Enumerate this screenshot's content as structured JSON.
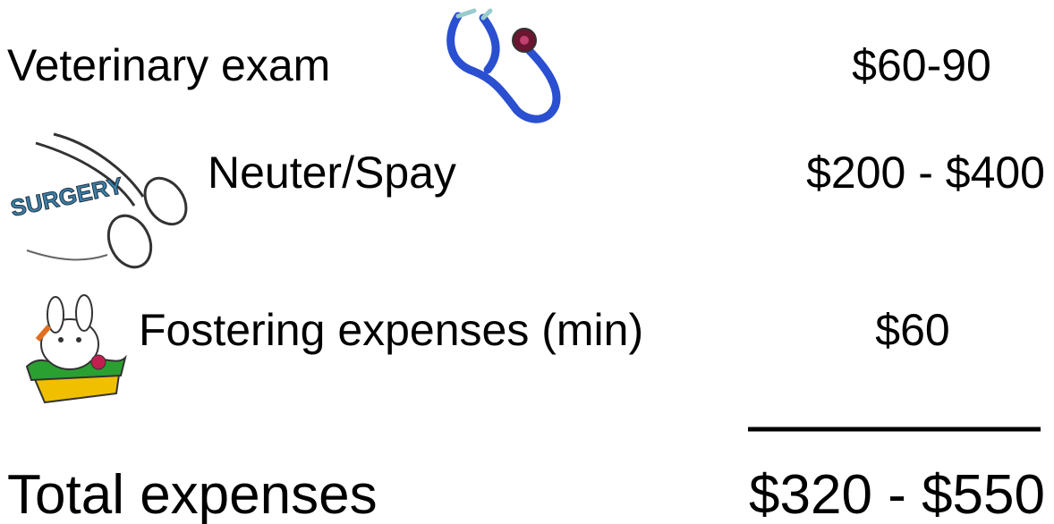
{
  "items": [
    {
      "label": "Veterinary exam",
      "amount": "$60-90"
    },
    {
      "label": "Neuter/Spay",
      "amount": "$200 - $400",
      "icon_text": "SURGERY"
    },
    {
      "label": "Fostering expenses (min)",
      "amount": "$60"
    }
  ],
  "total": {
    "label": "Total expenses",
    "amount": "$320 - $550"
  }
}
